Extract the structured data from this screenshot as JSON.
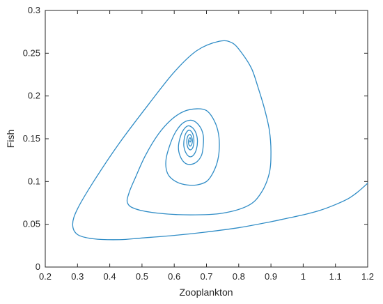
{
  "chart_data": {
    "type": "line",
    "title": "",
    "xlabel": "Zooplankton",
    "ylabel": "Fish",
    "xlim": [
      0.2,
      1.2
    ],
    "ylim": [
      0,
      0.3
    ],
    "xticks": [
      "0.2",
      "0.3",
      "0.4",
      "0.5",
      "0.6",
      "0.7",
      "0.8",
      "0.9",
      "1",
      "1.1",
      "1.2"
    ],
    "yticks": [
      "0",
      "0.05",
      "0.1",
      "0.15",
      "0.2",
      "0.25",
      "0.3"
    ],
    "grid": false,
    "line_color": "#2f8cc6",
    "series": [
      {
        "spiral_center": [
          0.648,
          0.148
        ],
        "points": [
          [
            1.2,
            0.098
          ],
          [
            1.17,
            0.088
          ],
          [
            1.14,
            0.08
          ],
          [
            1.1,
            0.073
          ],
          [
            1.05,
            0.066
          ],
          [
            1.0,
            0.061
          ],
          [
            0.95,
            0.057
          ],
          [
            0.9,
            0.053
          ],
          [
            0.8,
            0.046
          ],
          [
            0.7,
            0.041
          ],
          [
            0.6,
            0.037
          ],
          [
            0.5,
            0.034
          ],
          [
            0.43,
            0.032
          ],
          [
            0.35,
            0.033
          ],
          [
            0.3,
            0.038
          ],
          [
            0.285,
            0.05
          ],
          [
            0.3,
            0.068
          ],
          [
            0.35,
            0.1
          ],
          [
            0.43,
            0.145
          ],
          [
            0.52,
            0.19
          ],
          [
            0.6,
            0.228
          ],
          [
            0.67,
            0.253
          ],
          [
            0.74,
            0.264
          ],
          [
            0.78,
            0.262
          ],
          [
            0.81,
            0.25
          ],
          [
            0.84,
            0.232
          ],
          [
            0.86,
            0.21
          ],
          [
            0.88,
            0.185
          ],
          [
            0.895,
            0.16
          ],
          [
            0.9,
            0.135
          ],
          [
            0.895,
            0.11
          ],
          [
            0.87,
            0.087
          ],
          [
            0.83,
            0.072
          ],
          [
            0.75,
            0.063
          ],
          [
            0.65,
            0.061
          ],
          [
            0.55,
            0.063
          ],
          [
            0.48,
            0.068
          ],
          [
            0.455,
            0.075
          ],
          [
            0.46,
            0.087
          ],
          [
            0.48,
            0.105
          ],
          [
            0.51,
            0.13
          ],
          [
            0.55,
            0.155
          ],
          [
            0.59,
            0.172
          ],
          [
            0.63,
            0.182
          ],
          [
            0.67,
            0.185
          ],
          [
            0.7,
            0.183
          ],
          [
            0.72,
            0.174
          ],
          [
            0.735,
            0.16
          ],
          [
            0.74,
            0.143
          ],
          [
            0.735,
            0.125
          ],
          [
            0.72,
            0.11
          ],
          [
            0.7,
            0.1
          ],
          [
            0.67,
            0.096
          ],
          [
            0.64,
            0.096
          ],
          [
            0.61,
            0.099
          ],
          [
            0.585,
            0.106
          ],
          [
            0.575,
            0.115
          ],
          [
            0.575,
            0.127
          ],
          [
            0.585,
            0.141
          ],
          [
            0.6,
            0.155
          ],
          [
            0.62,
            0.166
          ],
          [
            0.64,
            0.171
          ],
          [
            0.66,
            0.171
          ],
          [
            0.68,
            0.164
          ],
          [
            0.69,
            0.154
          ],
          [
            0.69,
            0.142
          ],
          [
            0.685,
            0.131
          ],
          [
            0.67,
            0.123
          ],
          [
            0.65,
            0.12
          ],
          [
            0.632,
            0.122
          ],
          [
            0.618,
            0.13
          ],
          [
            0.613,
            0.14
          ],
          [
            0.618,
            0.151
          ],
          [
            0.628,
            0.16
          ],
          [
            0.642,
            0.165
          ],
          [
            0.656,
            0.163
          ],
          [
            0.667,
            0.157
          ],
          [
            0.672,
            0.148
          ],
          [
            0.669,
            0.138
          ],
          [
            0.66,
            0.131
          ],
          [
            0.648,
            0.129
          ],
          [
            0.637,
            0.133
          ],
          [
            0.63,
            0.141
          ],
          [
            0.631,
            0.15
          ],
          [
            0.637,
            0.157
          ],
          [
            0.647,
            0.16
          ],
          [
            0.657,
            0.156
          ],
          [
            0.661,
            0.148
          ],
          [
            0.658,
            0.14
          ],
          [
            0.65,
            0.137
          ],
          [
            0.642,
            0.14
          ],
          [
            0.639,
            0.147
          ],
          [
            0.642,
            0.153
          ],
          [
            0.649,
            0.155
          ],
          [
            0.655,
            0.151
          ],
          [
            0.656,
            0.146
          ],
          [
            0.652,
            0.142
          ],
          [
            0.647,
            0.142
          ],
          [
            0.644,
            0.146
          ],
          [
            0.646,
            0.15
          ],
          [
            0.65,
            0.151
          ],
          [
            0.652,
            0.148
          ],
          [
            0.649,
            0.146
          ],
          [
            0.648,
            0.148
          ]
        ]
      }
    ]
  }
}
